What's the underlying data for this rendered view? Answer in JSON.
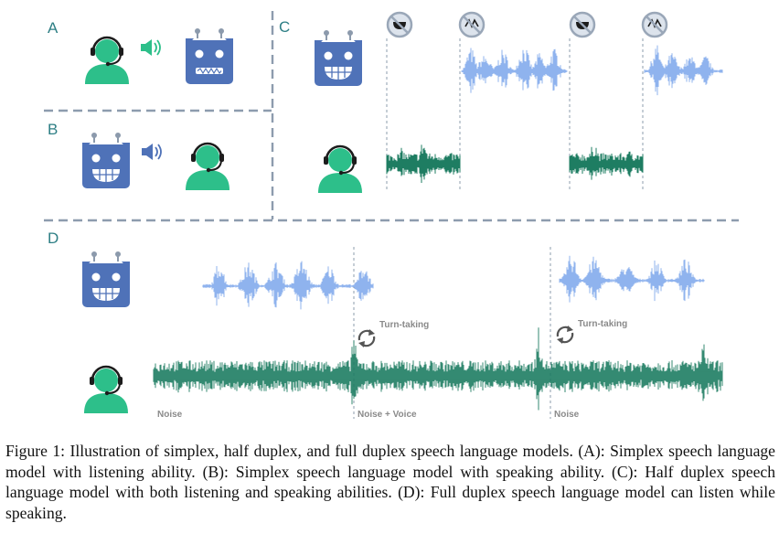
{
  "figure": {
    "panels": {
      "a": "A",
      "b": "B",
      "c": "C",
      "d": "D"
    },
    "annotations": {
      "turn_taking_1": "Turn-taking",
      "turn_taking_2": "Turn-taking",
      "noise_1": "Noise",
      "noise_voice": "Noise + Voice",
      "noise_2": "Noise"
    },
    "colors": {
      "divider": "#8d9cae",
      "panel_label": "#2e7f85",
      "human": "#2dbf8a",
      "robot": "#4f72b8",
      "robot_wave": "#8fb3ee",
      "human_wave": "#1e7d62",
      "mute_icon": "#9aa7b8"
    },
    "icons": [
      "headset-user-icon",
      "robot-icon",
      "speaker-icon",
      "mute-icon",
      "turn-taking-icon"
    ]
  },
  "caption": {
    "text": "Figure 1: Illustration of simplex, half duplex, and full duplex speech language models. (A): Simplex speech language model with listening ability. (B): Simplex speech language model with speaking ability. (C): Half duplex speech language model with both listening and speaking abilities. (D): Full duplex speech language model can listen while speaking."
  }
}
